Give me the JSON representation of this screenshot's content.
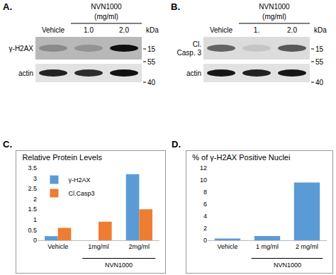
{
  "blots": [
    {
      "label": "A.",
      "treatment": "NVN1000",
      "unit": "(mg/ml)",
      "lanes": [
        "Vehicle",
        "1.0",
        "2.0"
      ],
      "rows": [
        {
          "name": [
            "γ-H2AX"
          ]
        },
        {
          "name": [
            "actin"
          ]
        }
      ],
      "kda_label": "kDa",
      "markers": [
        15,
        55,
        40
      ]
    },
    {
      "label": "B.",
      "treatment": "NVN1000",
      "unit": "(mg/ml)",
      "lanes": [
        "Vehicle",
        "1.",
        "2.0"
      ],
      "rows": [
        {
          "name": [
            "Cl.",
            "Casp. 3"
          ]
        },
        {
          "name": [
            "actin"
          ]
        }
      ],
      "kda_label": "kDa",
      "markers": [
        15,
        55,
        40
      ]
    }
  ],
  "chart_data": [
    {
      "panel_label": "C.",
      "type": "bar",
      "title": "Relative Protein Levels",
      "categories": [
        "Vehicle",
        "1mg/ml",
        "2mg/ml"
      ],
      "series": [
        {
          "name": "γ-H2AX",
          "color": "#5b9bd5",
          "values": [
            0.2,
            0,
            3.2
          ]
        },
        {
          "name": "Cl.Casp3",
          "color": "#ed7d31",
          "values": [
            0.6,
            0.9,
            1.5
          ]
        }
      ],
      "ylim": [
        0,
        3.5
      ],
      "yticks": [
        0,
        0.5,
        1,
        1.5,
        2,
        2.5,
        3,
        3.5
      ],
      "grid": false,
      "legend": "upper left",
      "annotations": [
        "NVN1000"
      ]
    },
    {
      "panel_label": "D.",
      "type": "bar",
      "title": "% of γ-H2AX Positive Nuclei",
      "categories": [
        "Vehicle",
        "1 mg/ml",
        "2 mg/ml"
      ],
      "values": [
        0.3,
        0.7,
        9.6
      ],
      "color": "#5b9bd5",
      "ylim": [
        0,
        12
      ],
      "yticks": [
        0,
        2,
        4,
        6,
        8,
        10,
        12
      ],
      "grid": false,
      "annotations": [
        "NVN1000"
      ]
    }
  ]
}
